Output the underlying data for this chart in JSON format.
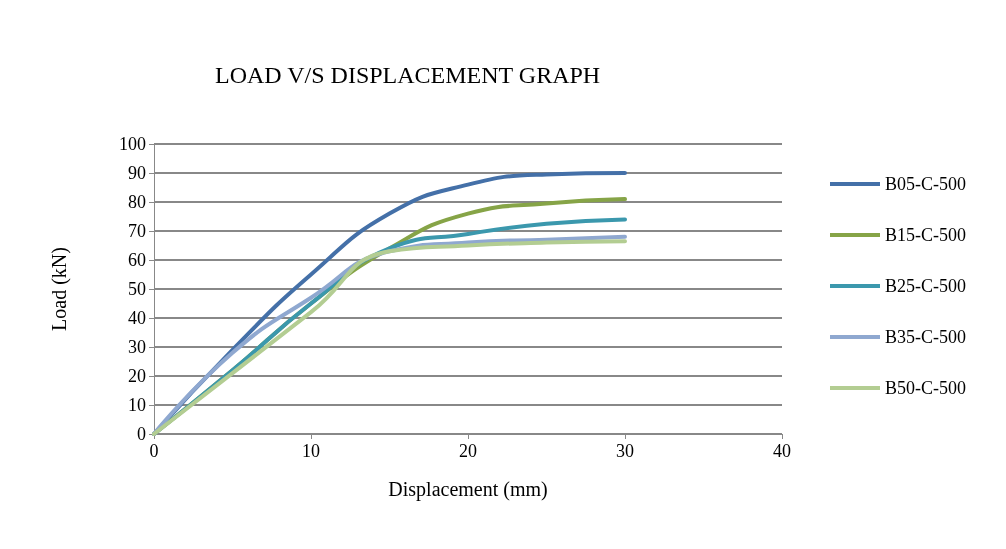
{
  "chart_data": {
    "type": "line",
    "title": "LOAD V/S DISPLACEMENT GRAPH",
    "xlabel": "Displacement (mm)",
    "ylabel": "Load (kN)",
    "x": [
      0,
      5,
      10,
      15,
      20,
      25,
      30
    ],
    "series": [
      {
        "name": "B05-C-500",
        "color": "#4470a8",
        "values": [
          0,
          29,
          55,
          76,
          86,
          89.5,
          90
        ]
      },
      {
        "name": "B15-C-500",
        "color": "#86a447",
        "values": [
          0,
          22,
          45,
          64,
          76,
          79.5,
          81
        ]
      },
      {
        "name": "B25-C-500",
        "color": "#3b98ad",
        "values": [
          0,
          22,
          45,
          64,
          69,
          72.5,
          74
        ]
      },
      {
        "name": "B35-C-500",
        "color": "#8fa8d0",
        "values": [
          0,
          28,
          47,
          63,
          66,
          67,
          68
        ]
      },
      {
        "name": "B50-C-500",
        "color": "#b3cd92",
        "values": [
          0,
          21,
          42,
          63,
          65,
          66,
          66.5
        ]
      }
    ],
    "xlim": [
      0,
      40
    ],
    "xticks": [
      0,
      10,
      20,
      30,
      40
    ],
    "ylim": [
      0,
      100
    ],
    "yticks": [
      0,
      10,
      20,
      30,
      40,
      50,
      60,
      70,
      80,
      90,
      100
    ],
    "grid": "y",
    "legend": "right",
    "marker": "none",
    "line_style": "solid"
  }
}
